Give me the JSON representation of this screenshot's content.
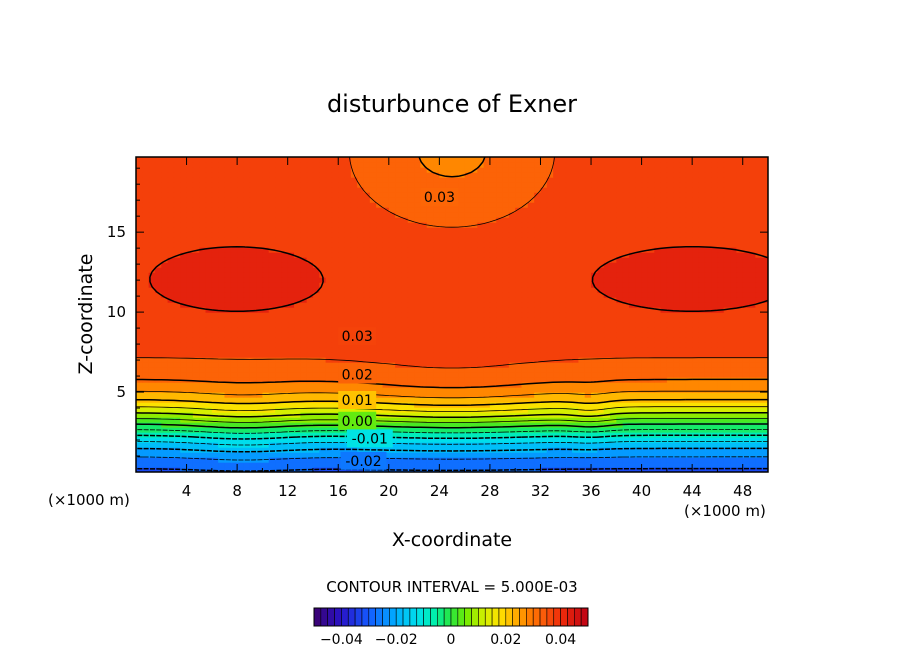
{
  "chart_data": {
    "type": "contour",
    "title": "disturbunce of Exner",
    "xlabel": "X-coordinate",
    "ylabel": "Z-coordinate",
    "x_unit": "(×1000 m)",
    "y_unit": "(×1000 m)",
    "xlim": [
      0,
      50
    ],
    "ylim": [
      0,
      19.7
    ],
    "x_ticks": [
      4,
      8,
      12,
      16,
      20,
      24,
      28,
      32,
      36,
      40,
      44,
      48
    ],
    "y_ticks": [
      5,
      10,
      15
    ],
    "contour_interval_text": "CONTOUR INTERVAL = 5.000E-03",
    "contour_interval": 0.005,
    "color_range": [
      -0.05,
      0.05
    ],
    "contour_labels": [
      {
        "text": "0.03",
        "x": 24,
        "z": 17.2
      },
      {
        "text": "0.03",
        "x": 17.5,
        "z": 8.5
      },
      {
        "text": "0.02",
        "x": 17.5,
        "z": 6.1
      },
      {
        "text": "0.01",
        "x": 17.5,
        "z": 4.5
      },
      {
        "text": "0.00",
        "x": 17.5,
        "z": 3.2
      },
      {
        "text": "-0.01",
        "x": 18.5,
        "z": 2.1
      },
      {
        "text": "-0.02",
        "x": 18,
        "z": 0.7
      }
    ],
    "colorbar_ticks": [
      {
        "label": "−0.04",
        "value": -0.04
      },
      {
        "label": "−0.02",
        "value": -0.02
      },
      {
        "label": "0",
        "value": 0
      },
      {
        "label": "0.02",
        "value": 0.02
      },
      {
        "label": "0.04",
        "value": 0.04
      }
    ]
  }
}
